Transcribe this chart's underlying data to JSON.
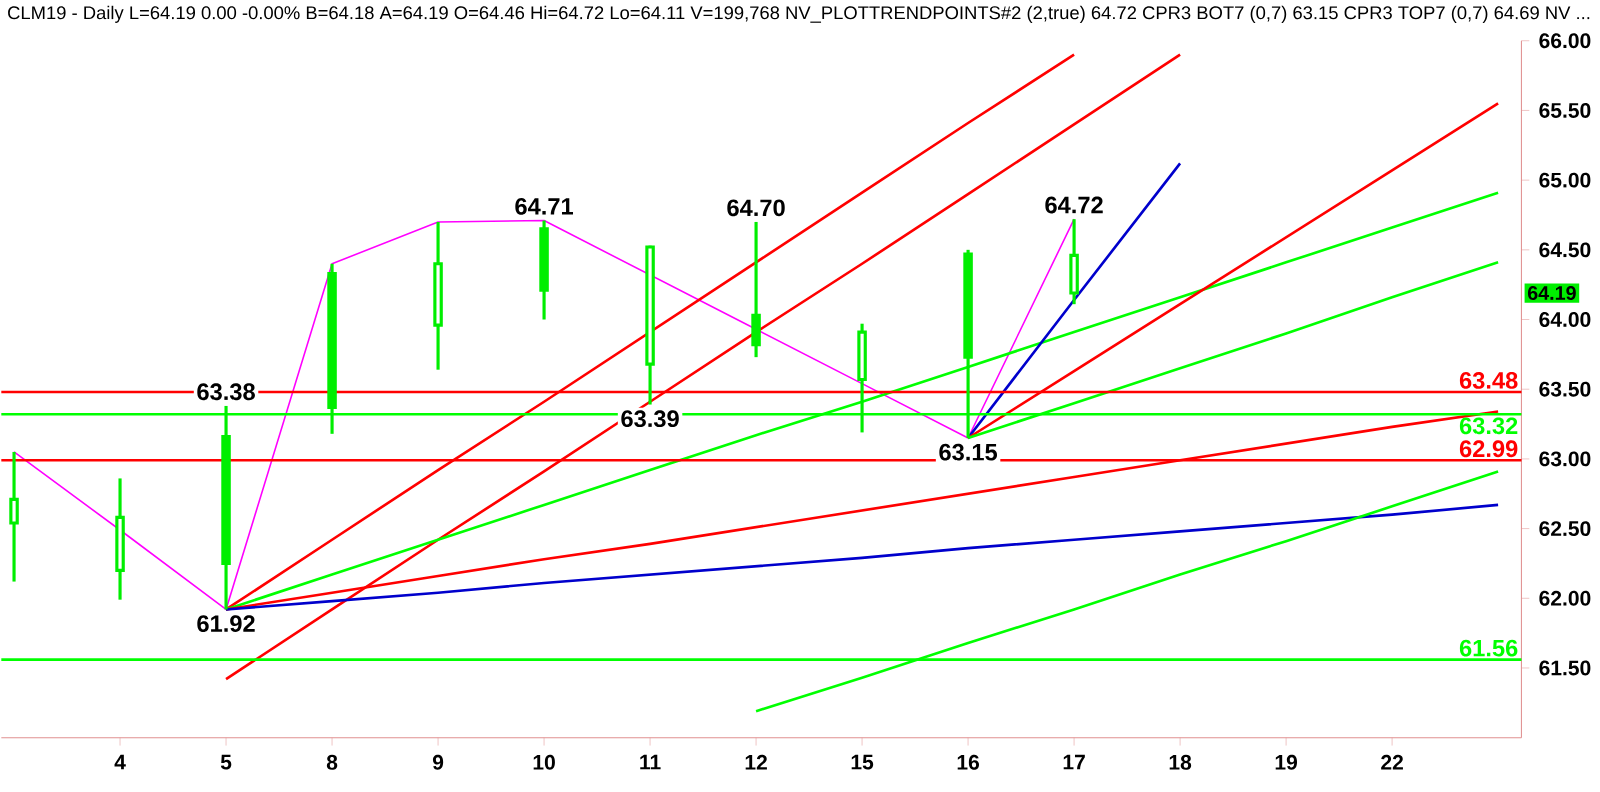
{
  "chart_data": {
    "type": "candlestick",
    "title": "CLM19 - Daily",
    "subtitle": "L=64.19 0.00 -0.00% B=64.18 A=64.19 O=64.46 Hi=64.72 Lo=64.11 V=199,768 NV_PLOTTRENDPOINTS#2 (2,true) 64.72 CPR3 BOT7 (0,7) 63.15 CPR3 TOP7 (0,7) 64.69 NV ...",
    "color": "#00ee00",
    "categories": [
      null,
      "4",
      "5",
      "8",
      "9",
      "10",
      "11",
      "12",
      "15",
      "16",
      "17",
      "18",
      "19",
      "22",
      null
    ],
    "ohlc": [
      [
        62.71,
        63.05,
        62.12,
        62.54
      ],
      [
        62.58,
        62.86,
        61.99,
        62.2
      ],
      [
        62.25,
        63.38,
        61.92,
        63.16
      ],
      [
        63.37,
        64.4,
        63.18,
        64.33
      ],
      [
        64.4,
        64.7,
        63.64,
        63.96
      ],
      [
        64.21,
        64.71,
        64.0,
        64.65
      ],
      [
        64.52,
        64.53,
        63.39,
        63.68
      ],
      [
        63.82,
        64.7,
        63.73,
        64.03
      ],
      [
        63.91,
        63.97,
        63.19,
        63.57
      ],
      [
        63.73,
        64.5,
        63.15,
        64.47
      ],
      [
        64.46,
        64.72,
        64.11,
        64.19
      ],
      null,
      null,
      null,
      null
    ],
    "series": [
      {
        "type": "line",
        "color": "#ff00ff",
        "values": [
          63.05,
          62.49,
          61.92,
          64.4,
          64.7,
          64.71,
          64.32,
          63.93,
          63.54,
          63.15,
          64.72,
          null,
          null,
          null,
          null
        ]
      },
      {
        "type": "line",
        "color": "#ff0000",
        "values": [
          null,
          null,
          61.92,
          62.42,
          62.92,
          63.41,
          63.91,
          64.41,
          64.91,
          65.41,
          65.9,
          null,
          null,
          null,
          null
        ]
      },
      {
        "type": "line",
        "color": "#ff0000",
        "values": [
          null,
          null,
          61.42,
          61.92,
          62.42,
          62.91,
          63.41,
          63.91,
          64.4,
          64.9,
          65.4,
          65.9,
          null,
          null,
          null
        ]
      },
      {
        "type": "line",
        "color": "#00ff00",
        "values": [
          null,
          null,
          61.92,
          62.17,
          62.42,
          62.67,
          62.92,
          63.17,
          63.41,
          63.66,
          63.91,
          64.16,
          64.41,
          64.66,
          64.91
        ]
      },
      {
        "type": "line",
        "color": "#ff0000",
        "values": [
          null,
          null,
          61.92,
          62.04,
          62.16,
          62.28,
          62.39,
          62.51,
          62.63,
          62.75,
          62.87,
          62.99,
          63.11,
          63.23,
          63.34
        ]
      },
      {
        "type": "line",
        "color": "#0000cc",
        "values": [
          null,
          null,
          61.92,
          61.98,
          62.04,
          62.11,
          62.17,
          62.23,
          62.29,
          62.36,
          62.42,
          62.48,
          62.54,
          62.6,
          62.67
        ]
      },
      {
        "type": "line",
        "color": "#0000cc",
        "values": [
          null,
          null,
          null,
          null,
          null,
          null,
          null,
          null,
          null,
          63.15,
          64.14,
          65.12,
          null,
          null,
          null
        ]
      },
      {
        "type": "line",
        "color": "#ff0000",
        "values": [
          null,
          null,
          null,
          null,
          null,
          null,
          null,
          null,
          null,
          63.15,
          63.63,
          64.11,
          64.59,
          65.07,
          65.55
        ]
      },
      {
        "type": "line",
        "color": "#00ff00",
        "values": [
          null,
          null,
          null,
          null,
          null,
          null,
          null,
          null,
          null,
          63.15,
          63.4,
          63.65,
          63.9,
          64.16,
          64.41
        ]
      },
      {
        "type": "line",
        "color": "#00ff00",
        "values": [
          null,
          null,
          null,
          null,
          null,
          null,
          null,
          61.19,
          61.43,
          61.68,
          61.92,
          62.17,
          62.41,
          62.66,
          62.91
        ]
      }
    ],
    "ref_lines": [
      {
        "axis": "y",
        "value": 63.48,
        "label": "63.48",
        "color": "#ff0000"
      },
      {
        "axis": "y",
        "value": 63.32,
        "label": "63.32",
        "color": "#00ff00"
      },
      {
        "axis": "y",
        "value": 62.99,
        "label": "62.99",
        "color": "#ff0000"
      },
      {
        "axis": "y",
        "value": 61.56,
        "label": "61.56",
        "color": "#00ff00"
      }
    ],
    "annotations": [
      {
        "text": "63.38",
        "x": "5",
        "y": 63.38
      },
      {
        "text": "61.92",
        "x": "5",
        "y": 61.92
      },
      {
        "text": "64.71",
        "x": "10",
        "y": 64.71
      },
      {
        "text": "63.39",
        "x": "11",
        "y": 63.39
      },
      {
        "text": "64.70",
        "x": "12",
        "y": 64.7
      },
      {
        "text": "63.15",
        "x": "16",
        "y": 63.15
      },
      {
        "text": "64.72",
        "x": "17",
        "y": 64.72
      },
      {
        "text": "64.19",
        "y": 64.19
      }
    ],
    "ylim": [
      61.0,
      66.0
    ],
    "yticks": [
      {
        "value": 61.5,
        "label": "61.50"
      },
      {
        "value": 62.0,
        "label": "62.00"
      },
      {
        "value": 62.5,
        "label": "62.50"
      },
      {
        "value": 63.0,
        "label": "63.00"
      },
      {
        "value": 63.5,
        "label": "63.50"
      },
      {
        "value": 64.0,
        "label": "64.00"
      },
      {
        "value": 64.5,
        "label": "64.50"
      },
      {
        "value": 65.0,
        "label": "65.00"
      },
      {
        "value": 65.5,
        "label": "65.50"
      },
      {
        "value": 66.0,
        "label": "66.00"
      }
    ]
  }
}
